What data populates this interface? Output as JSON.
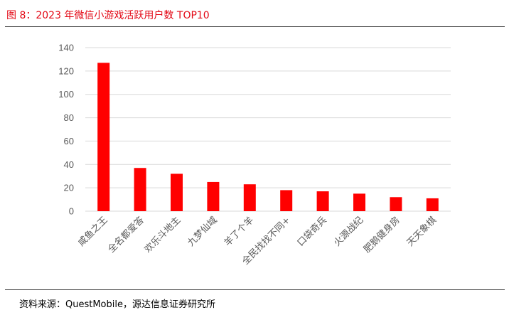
{
  "figure": {
    "title": "图 8：2023 年微信小游戏活跃用户数 TOP10",
    "source": "资料来源：QuestMobile，源达信息证券研究所"
  },
  "colors": {
    "accent": "#e30613",
    "bar": "#ff0000",
    "grid": "#d9d9d9",
    "tick_text": "#595959"
  },
  "chart_data": {
    "type": "bar",
    "title": "",
    "xlabel": "",
    "ylabel": "",
    "categories": [
      "咸鱼之王",
      "全名都爱答",
      "欢乐斗地主",
      "九梦仙域",
      "羊了个羊",
      "全民找找不同+",
      "口袋奇兵",
      "火源战纪",
      "肥鹅健身房",
      "天天象棋"
    ],
    "values": [
      127,
      37,
      32,
      25,
      23,
      18,
      17,
      15,
      12,
      11
    ],
    "ylim": [
      0,
      140
    ],
    "yticks": [
      0,
      20,
      40,
      60,
      80,
      100,
      120,
      140
    ],
    "grid": true,
    "legend": "none"
  }
}
